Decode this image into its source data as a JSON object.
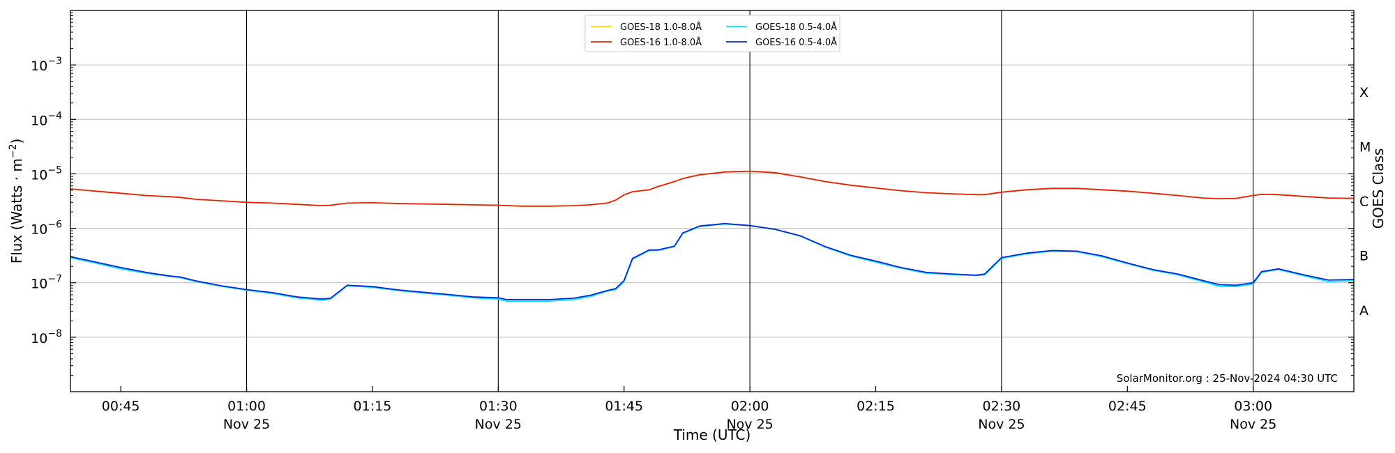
{
  "chart_data": {
    "type": "line",
    "xlabel": "Time (UTC)",
    "ylabel": "Flux (Watts · m",
    "ylabel_exp": "−2",
    "ylabel_close": ")",
    "ylabel_right": "GOES Class",
    "y_scale": "log",
    "ylim": [
      1e-09,
      0.01
    ],
    "xlim": [
      "00:39",
      "03:12"
    ],
    "grid": "horizontal",
    "legend_position": "top-center",
    "y_ticks": [
      {
        "value": 1e-08,
        "base": "10",
        "exp": "−8"
      },
      {
        "value": 1e-07,
        "base": "10",
        "exp": "−7"
      },
      {
        "value": 1e-06,
        "base": "10",
        "exp": "−6"
      },
      {
        "value": 1e-05,
        "base": "10",
        "exp": "−5"
      },
      {
        "value": 0.0001,
        "base": "10",
        "exp": "−4"
      },
      {
        "value": 0.001,
        "base": "10",
        "exp": "−3"
      }
    ],
    "goes_classes": [
      {
        "label": "A",
        "value": 3.16e-08
      },
      {
        "label": "B",
        "value": 3.16e-07
      },
      {
        "label": "C",
        "value": 3.16e-06
      },
      {
        "label": "M",
        "value": 3.16e-05
      },
      {
        "label": "X",
        "value": 0.000316
      }
    ],
    "x_ticks": [
      {
        "time": "00:45",
        "label": "00:45",
        "sub": ""
      },
      {
        "time": "01:00",
        "label": "01:00",
        "sub": "Nov 25"
      },
      {
        "time": "01:15",
        "label": "01:15",
        "sub": ""
      },
      {
        "time": "01:30",
        "label": "01:30",
        "sub": "Nov 25"
      },
      {
        "time": "01:45",
        "label": "01:45",
        "sub": ""
      },
      {
        "time": "02:00",
        "label": "02:00",
        "sub": "Nov 25"
      },
      {
        "time": "02:15",
        "label": "02:15",
        "sub": ""
      },
      {
        "time": "02:30",
        "label": "02:30",
        "sub": "Nov 25"
      },
      {
        "time": "02:45",
        "label": "02:45",
        "sub": ""
      },
      {
        "time": "03:00",
        "label": "03:00",
        "sub": "Nov 25"
      }
    ],
    "vertical_lines": [
      "01:00",
      "01:30",
      "02:00",
      "02:30",
      "03:00"
    ],
    "x": [
      "00:39",
      "00:42",
      "00:45",
      "00:48",
      "00:51",
      "00:52",
      "00:54",
      "00:57",
      "01:00",
      "01:03",
      "01:06",
      "01:09",
      "01:10",
      "01:12",
      "01:15",
      "01:18",
      "01:21",
      "01:24",
      "01:27",
      "01:30",
      "01:31",
      "01:33",
      "01:36",
      "01:39",
      "01:41",
      "01:43",
      "01:44",
      "01:45",
      "01:46",
      "01:48",
      "01:49",
      "01:51",
      "01:52",
      "01:54",
      "01:57",
      "02:00",
      "02:03",
      "02:06",
      "02:09",
      "02:12",
      "02:15",
      "02:18",
      "02:21",
      "02:24",
      "02:27",
      "02:28",
      "02:30",
      "02:33",
      "02:36",
      "02:39",
      "02:42",
      "02:45",
      "02:48",
      "02:51",
      "02:54",
      "02:56",
      "02:58",
      "03:00",
      "03:01",
      "03:03",
      "03:06",
      "03:09",
      "03:12"
    ],
    "series": [
      {
        "name": "GOES-18 1.0-8.0Å",
        "color": "#ffd700",
        "values": [
          5.3e-06,
          4.8e-06,
          4.4e-06,
          4e-06,
          3.8e-06,
          3.7e-06,
          3.4e-06,
          3.2e-06,
          3e-06,
          2.9e-06,
          2.75e-06,
          2.6e-06,
          2.65e-06,
          2.9e-06,
          2.95e-06,
          2.85e-06,
          2.8e-06,
          2.75e-06,
          2.7e-06,
          2.65e-06,
          2.6e-06,
          2.55e-06,
          2.55e-06,
          2.6e-06,
          2.7e-06,
          2.9e-06,
          3.3e-06,
          4.1e-06,
          4.7e-06,
          5.1e-06,
          5.8e-06,
          7.2e-06,
          8.2e-06,
          9.6e-06,
          1.08e-05,
          1.12e-05,
          1.05e-05,
          8.8e-06,
          7.2e-06,
          6.2e-06,
          5.5e-06,
          4.9e-06,
          4.5e-06,
          4.3e-06,
          4.15e-06,
          4.15e-06,
          4.6e-06,
          5.1e-06,
          5.4e-06,
          5.4e-06,
          5.1e-06,
          4.8e-06,
          4.4e-06,
          4e-06,
          3.6e-06,
          3.5e-06,
          3.55e-06,
          4e-06,
          4.2e-06,
          4.15e-06,
          3.85e-06,
          3.6e-06,
          3.55e-06
        ]
      },
      {
        "name": "GOES-16 1.0-8.0Å",
        "color": "#e8200b",
        "values": [
          5.3e-06,
          4.8e-06,
          4.4e-06,
          4e-06,
          3.8e-06,
          3.7e-06,
          3.4e-06,
          3.2e-06,
          3e-06,
          2.9e-06,
          2.75e-06,
          2.6e-06,
          2.65e-06,
          2.9e-06,
          2.95e-06,
          2.85e-06,
          2.8e-06,
          2.75e-06,
          2.7e-06,
          2.65e-06,
          2.6e-06,
          2.55e-06,
          2.55e-06,
          2.6e-06,
          2.7e-06,
          2.9e-06,
          3.3e-06,
          4.1e-06,
          4.7e-06,
          5.1e-06,
          5.8e-06,
          7.2e-06,
          8.2e-06,
          9.6e-06,
          1.08e-05,
          1.12e-05,
          1.05e-05,
          8.8e-06,
          7.2e-06,
          6.2e-06,
          5.5e-06,
          4.9e-06,
          4.5e-06,
          4.3e-06,
          4.15e-06,
          4.15e-06,
          4.6e-06,
          5.1e-06,
          5.4e-06,
          5.4e-06,
          5.1e-06,
          4.8e-06,
          4.4e-06,
          4e-06,
          3.6e-06,
          3.5e-06,
          3.55e-06,
          4e-06,
          4.2e-06,
          4.15e-06,
          3.85e-06,
          3.6e-06,
          3.55e-06
        ]
      },
      {
        "name": "GOES-18 0.5-4.0Å",
        "color": "#00e5ff",
        "values": [
          2.9e-07,
          2.3e-07,
          1.8e-07,
          1.5e-07,
          1.3e-07,
          1.25e-07,
          1.05e-07,
          8.6e-08,
          7.3e-08,
          6.4e-08,
          5.3e-08,
          4.8e-08,
          5e-08,
          8.8e-08,
          8.2e-08,
          7.2e-08,
          6.5e-08,
          5.9e-08,
          5.3e-08,
          5e-08,
          4.6e-08,
          4.6e-08,
          4.6e-08,
          4.9e-08,
          5.6e-08,
          7e-08,
          7.5e-08,
          1.05e-07,
          2.7e-07,
          3.9e-07,
          3.9e-07,
          4.6e-07,
          8e-07,
          1.08e-06,
          1.2e-06,
          1.12e-06,
          9.5e-07,
          7.2e-07,
          4.5e-07,
          3.1e-07,
          2.4e-07,
          1.85e-07,
          1.5e-07,
          1.42e-07,
          1.35e-07,
          1.4e-07,
          2.8e-07,
          3.4e-07,
          3.8e-07,
          3.7e-07,
          3e-07,
          2.25e-07,
          1.7e-07,
          1.4e-07,
          1.05e-07,
          8.6e-08,
          8.5e-08,
          9.5e-08,
          1.55e-07,
          1.75e-07,
          1.35e-07,
          1.05e-07,
          1.1e-07
        ]
      },
      {
        "name": "GOES-16 0.5-4.0Å",
        "color": "#0a28d6",
        "values": [
          3e-07,
          2.4e-07,
          1.9e-07,
          1.55e-07,
          1.32e-07,
          1.28e-07,
          1.08e-07,
          8.8e-08,
          7.5e-08,
          6.6e-08,
          5.5e-08,
          5e-08,
          5.2e-08,
          9e-08,
          8.5e-08,
          7.4e-08,
          6.7e-08,
          6.1e-08,
          5.5e-08,
          5.3e-08,
          4.9e-08,
          4.9e-08,
          4.9e-08,
          5.2e-08,
          5.9e-08,
          7.2e-08,
          7.8e-08,
          1.1e-07,
          2.8e-07,
          4e-07,
          4e-07,
          4.7e-07,
          8.2e-07,
          1.1e-06,
          1.22e-06,
          1.12e-06,
          9.6e-07,
          7.3e-07,
          4.6e-07,
          3.2e-07,
          2.5e-07,
          1.9e-07,
          1.55e-07,
          1.45e-07,
          1.38e-07,
          1.45e-07,
          2.9e-07,
          3.5e-07,
          3.9e-07,
          3.8e-07,
          3.1e-07,
          2.3e-07,
          1.75e-07,
          1.45e-07,
          1.1e-07,
          9.2e-08,
          9e-08,
          1e-07,
          1.6e-07,
          1.8e-07,
          1.4e-07,
          1.12e-07,
          1.15e-07
        ]
      }
    ],
    "legend": {
      "left_col": [
        "GOES-18 1.0-8.0Å",
        "GOES-16 1.0-8.0Å"
      ],
      "right_col": [
        "GOES-18 0.5-4.0Å",
        "GOES-16 0.5-4.0Å"
      ]
    },
    "credit": "SolarMonitor.org : 25-Nov-2024 04:30 UTC"
  }
}
